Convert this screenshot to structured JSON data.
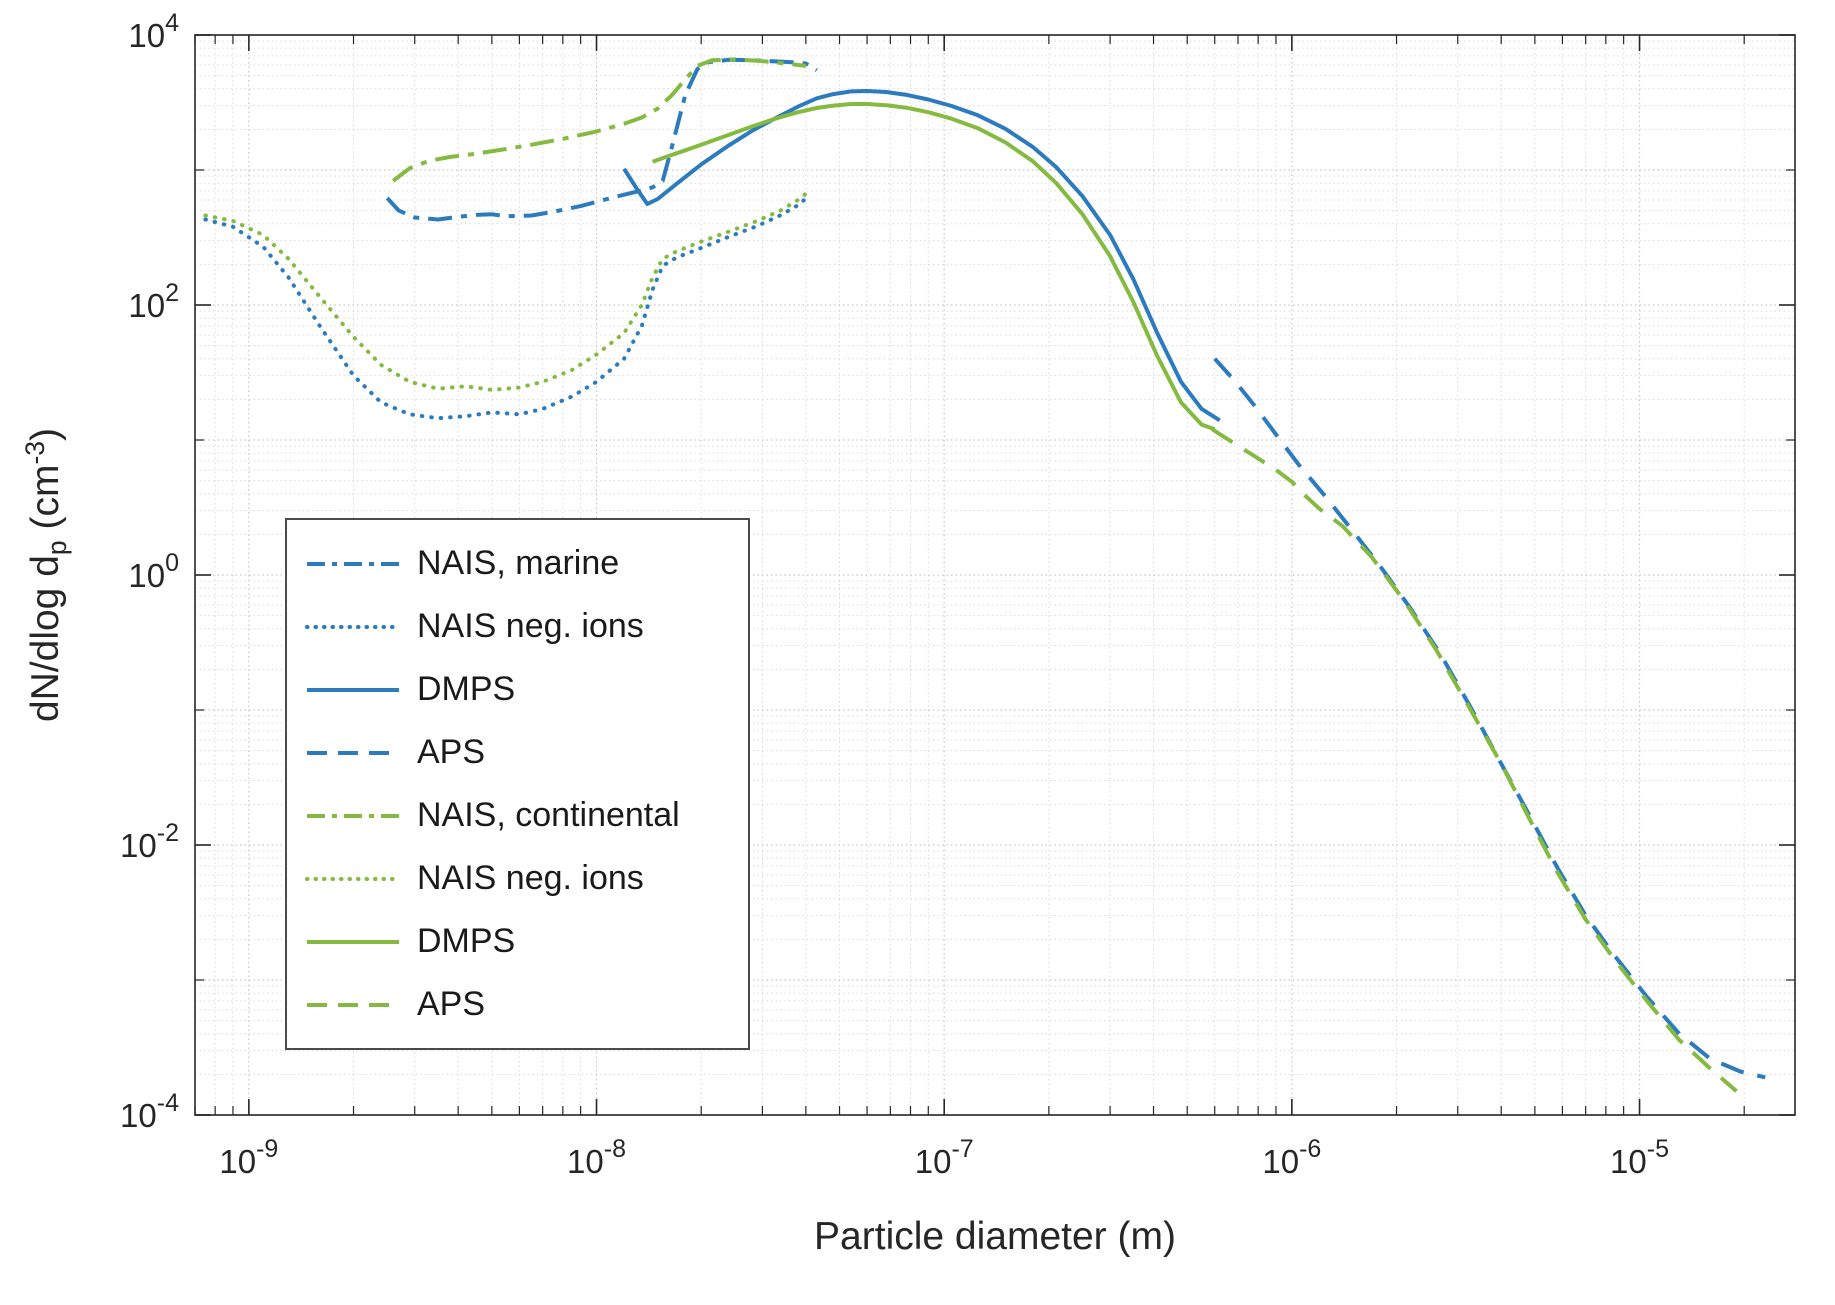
{
  "figure": {
    "background": "#ffffff",
    "axes_color": "#262626"
  },
  "chart_data": {
    "type": "line",
    "title": "",
    "legend_position": "west",
    "grid": {
      "major_color": "#c6c6c6",
      "minor_color": "#dadada",
      "style": "dotted"
    },
    "colors": {
      "blue": "#2b7bbd",
      "green": "#85ba41"
    },
    "x_axis": {
      "label": "Particle diameter (m)",
      "scale": "log",
      "min": 7e-10,
      "max": 2.8e-05,
      "ticks": [
        {
          "value": 1e-09,
          "exp": "-9"
        },
        {
          "value": 1e-08,
          "exp": "-8"
        },
        {
          "value": 1e-07,
          "exp": "-7"
        },
        {
          "value": 1e-06,
          "exp": "-6"
        },
        {
          "value": 1e-05,
          "exp": "-5"
        }
      ]
    },
    "y_axis": {
      "label_parts": {
        "main": "dN/dlog d",
        "sub": "p",
        "mid": " (cm",
        "sup": "-3",
        "end": ")"
      },
      "scale": "log",
      "min": 0.0001,
      "max": 10000.0,
      "ticks": [
        {
          "value": 10000.0,
          "exp": "4"
        },
        {
          "value": 100.0,
          "exp": "2"
        },
        {
          "value": 1,
          "exp": "0"
        },
        {
          "value": 0.01,
          "exp": "-2"
        },
        {
          "value": 0.0001,
          "exp": "-4"
        }
      ]
    },
    "series": [
      {
        "name": "NAIS, marine",
        "color": "blue",
        "style": "dashdot",
        "points": [
          [
            2.5e-09,
            620
          ],
          [
            2.7e-09,
            500
          ],
          [
            3e-09,
            445
          ],
          [
            3.5e-09,
            430
          ],
          [
            4e-09,
            450
          ],
          [
            4.5e-09,
            465
          ],
          [
            5e-09,
            470
          ],
          [
            5.5e-09,
            455
          ],
          [
            6.5e-09,
            460
          ],
          [
            7.5e-09,
            490
          ],
          [
            9e-09,
            540
          ],
          [
            1.1e-08,
            620
          ],
          [
            1.3e-08,
            690
          ],
          [
            1.45e-08,
            745
          ],
          [
            1.55e-08,
            830
          ],
          [
            1.65e-08,
            1500
          ],
          [
            1.8e-08,
            3600
          ],
          [
            1.95e-08,
            5600
          ],
          [
            2.1e-08,
            6300
          ],
          [
            2.4e-08,
            6550
          ],
          [
            2.8e-08,
            6500
          ],
          [
            3.2e-08,
            6400
          ],
          [
            3.6e-08,
            6300
          ],
          [
            4e-08,
            6150
          ],
          [
            4.3e-08,
            5500
          ]
        ]
      },
      {
        "name": "NAIS neg. ions",
        "color": "blue",
        "style": "dotted",
        "points": [
          [
            7.5e-10,
            430
          ],
          [
            9e-10,
            380
          ],
          [
            1.1e-09,
            270
          ],
          [
            1.3e-09,
            160
          ],
          [
            1.6e-09,
            70
          ],
          [
            2e-09,
            30
          ],
          [
            2.4e-09,
            19
          ],
          [
            2.9e-09,
            15.5
          ],
          [
            3.5e-09,
            14.5
          ],
          [
            4.2e-09,
            15
          ],
          [
            5e-09,
            16
          ],
          [
            6e-09,
            15.5
          ],
          [
            7e-09,
            17
          ],
          [
            8.5e-09,
            21
          ],
          [
            1e-08,
            27
          ],
          [
            1.2e-08,
            40
          ],
          [
            1.35e-08,
            70
          ],
          [
            1.45e-08,
            130
          ],
          [
            1.55e-08,
            195
          ],
          [
            1.7e-08,
            225
          ],
          [
            2e-08,
            265
          ],
          [
            2.4e-08,
            320
          ],
          [
            2.9e-08,
            385
          ],
          [
            3.4e-08,
            465
          ],
          [
            3.8e-08,
            550
          ],
          [
            4.1e-08,
            650
          ]
        ]
      },
      {
        "name": "DMPS",
        "color": "blue",
        "style": "solid",
        "points": [
          [
            1.2e-08,
            1020
          ],
          [
            1.3e-08,
            740
          ],
          [
            1.4e-08,
            560
          ],
          [
            1.5e-08,
            610
          ],
          [
            1.7e-08,
            790
          ],
          [
            2e-08,
            1100
          ],
          [
            2.4e-08,
            1520
          ],
          [
            2.8e-08,
            1950
          ],
          [
            3.3e-08,
            2450
          ],
          [
            3.8e-08,
            2950
          ],
          [
            4.3e-08,
            3400
          ],
          [
            4.8e-08,
            3650
          ],
          [
            5.4e-08,
            3820
          ],
          [
            6e-08,
            3850
          ],
          [
            6.8e-08,
            3780
          ],
          [
            7.8e-08,
            3600
          ],
          [
            9e-08,
            3330
          ],
          [
            1.05e-07,
            2980
          ],
          [
            1.25e-07,
            2540
          ],
          [
            1.5e-07,
            2020
          ],
          [
            1.8e-07,
            1480
          ],
          [
            2.1e-07,
            1050
          ],
          [
            2.5e-07,
            640
          ],
          [
            3e-07,
            330
          ],
          [
            3.5e-07,
            155
          ],
          [
            4.1e-07,
            62
          ],
          [
            4.8e-07,
            27
          ],
          [
            5.5e-07,
            17
          ],
          [
            6.2e-07,
            14
          ]
        ]
      },
      {
        "name": "APS",
        "color": "blue",
        "style": "dashed",
        "points": [
          [
            6e-07,
            40
          ],
          [
            6.8e-07,
            28
          ],
          [
            7.8e-07,
            18
          ],
          [
            9e-07,
            11
          ],
          [
            1.05e-06,
            6.5
          ],
          [
            1.25e-06,
            3.8
          ],
          [
            1.5e-06,
            2.1
          ],
          [
            1.8e-06,
            1.15
          ],
          [
            2.2e-06,
            0.56
          ],
          [
            2.7e-06,
            0.25
          ],
          [
            3.3e-06,
            0.1
          ],
          [
            4e-06,
            0.04
          ],
          [
            4.8e-06,
            0.017
          ],
          [
            5.8e-06,
            0.0068
          ],
          [
            7e-06,
            0.003
          ],
          [
            8.5e-06,
            0.0015
          ],
          [
            1.05e-05,
            0.00075
          ],
          [
            1.3e-05,
            0.0004
          ],
          [
            1.6e-05,
            0.00026
          ],
          [
            1.95e-05,
            0.00021
          ],
          [
            2.3e-05,
            0.00019
          ]
        ]
      },
      {
        "name": "NAIS, continental",
        "color": "green",
        "style": "dashdot",
        "points": [
          [
            2.6e-09,
            830
          ],
          [
            2.9e-09,
            1030
          ],
          [
            3.3e-09,
            1170
          ],
          [
            3.8e-09,
            1250
          ],
          [
            4.5e-09,
            1320
          ],
          [
            5.5e-09,
            1430
          ],
          [
            6.5e-09,
            1540
          ],
          [
            8e-09,
            1700
          ],
          [
            1e-08,
            1930
          ],
          [
            1.2e-08,
            2200
          ],
          [
            1.35e-08,
            2450
          ],
          [
            1.5e-08,
            2850
          ],
          [
            1.65e-08,
            3600
          ],
          [
            1.8e-08,
            4700
          ],
          [
            1.95e-08,
            5900
          ],
          [
            2.15e-08,
            6500
          ],
          [
            2.5e-08,
            6600
          ],
          [
            2.9e-08,
            6450
          ],
          [
            3.3e-08,
            6250
          ],
          [
            3.7e-08,
            6050
          ],
          [
            4e-08,
            5900
          ]
        ]
      },
      {
        "name": "NAIS neg. ions",
        "color": "green",
        "style": "dotted",
        "points": [
          [
            7.5e-10,
            460
          ],
          [
            9e-10,
            420
          ],
          [
            1.1e-09,
            330
          ],
          [
            1.3e-09,
            220
          ],
          [
            1.6e-09,
            115
          ],
          [
            2e-09,
            58
          ],
          [
            2.4e-09,
            36
          ],
          [
            2.9e-09,
            27
          ],
          [
            3.5e-09,
            24
          ],
          [
            4.2e-09,
            25
          ],
          [
            5e-09,
            23.5
          ],
          [
            6e-09,
            24.5
          ],
          [
            7e-09,
            27
          ],
          [
            8.5e-09,
            33
          ],
          [
            1e-08,
            43
          ],
          [
            1.2e-08,
            62
          ],
          [
            1.35e-08,
            100
          ],
          [
            1.45e-08,
            160
          ],
          [
            1.55e-08,
            220
          ],
          [
            1.7e-08,
            250
          ],
          [
            2e-08,
            295
          ],
          [
            2.4e-08,
            350
          ],
          [
            2.9e-08,
            420
          ],
          [
            3.4e-08,
            505
          ],
          [
            3.8e-08,
            600
          ],
          [
            4.1e-08,
            700
          ]
        ]
      },
      {
        "name": "DMPS",
        "color": "green",
        "style": "solid",
        "points": [
          [
            1.45e-08,
            1150
          ],
          [
            1.6e-08,
            1260
          ],
          [
            1.8e-08,
            1400
          ],
          [
            2e-08,
            1540
          ],
          [
            2.4e-08,
            1820
          ],
          [
            2.8e-08,
            2100
          ],
          [
            3.3e-08,
            2420
          ],
          [
            3.8e-08,
            2680
          ],
          [
            4.3e-08,
            2880
          ],
          [
            4.8e-08,
            3000
          ],
          [
            5.4e-08,
            3080
          ],
          [
            6e-08,
            3080
          ],
          [
            6.8e-08,
            3020
          ],
          [
            7.8e-08,
            2890
          ],
          [
            9e-08,
            2680
          ],
          [
            1.05e-07,
            2400
          ],
          [
            1.25e-07,
            2040
          ],
          [
            1.5e-07,
            1600
          ],
          [
            1.8e-07,
            1160
          ],
          [
            2.1e-07,
            800
          ],
          [
            2.5e-07,
            470
          ],
          [
            3e-07,
            230
          ],
          [
            3.5e-07,
            105
          ],
          [
            4.1e-07,
            42
          ],
          [
            4.8e-07,
            19
          ],
          [
            5.5e-07,
            13
          ],
          [
            6e-07,
            12
          ]
        ]
      },
      {
        "name": "APS",
        "color": "green",
        "style": "dashed",
        "points": [
          [
            5.9e-07,
            12
          ],
          [
            6.8e-07,
            9.5
          ],
          [
            7.8e-07,
            7.6
          ],
          [
            9e-07,
            6.0
          ],
          [
            1e-06,
            4.9
          ],
          [
            1.1e-06,
            3.8
          ],
          [
            1.2e-06,
            3.1
          ],
          [
            1.4e-06,
            2.3
          ],
          [
            1.7e-06,
            1.35
          ],
          [
            2.1e-06,
            0.65
          ],
          [
            2.6e-06,
            0.28
          ],
          [
            3.2e-06,
            0.11
          ],
          [
            4e-06,
            0.04
          ],
          [
            4.8e-06,
            0.016
          ],
          [
            5.8e-06,
            0.0063
          ],
          [
            7e-06,
            0.0028
          ],
          [
            8.5e-06,
            0.0014
          ],
          [
            1.05e-05,
            0.0007
          ],
          [
            1.3e-05,
            0.00036
          ],
          [
            1.6e-05,
            0.00022
          ],
          [
            1.9e-05,
            0.00015
          ]
        ]
      }
    ]
  }
}
